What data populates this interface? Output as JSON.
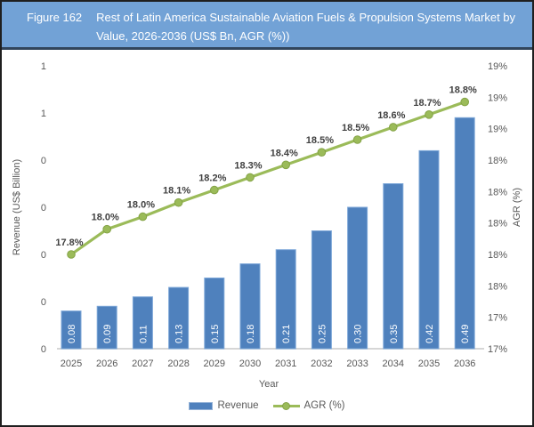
{
  "header": {
    "figure_label": "Figure 162",
    "title_line1": "Rest of Latin America Sustainable Aviation Fuels & Propulsion Systems Market by",
    "title_line2": "Value, 2026-2036 (US$ Bn, AGR (%))"
  },
  "colors": {
    "header_bg": "#72A2D6",
    "header_rule": "#31455C",
    "bar_fill": "#4F81BD",
    "bar_edge": "#7DA7D8",
    "line_green": "#9BBB59",
    "marker_edge": "#84A346",
    "axis_text": "#595959",
    "point_label_text": "#404040",
    "bar_label_text": "#FFFFFF",
    "axis_line": "#C9C9C9"
  },
  "chart_data": {
    "type": "combo",
    "title": "Rest of Latin America Sustainable Aviation Fuels & Propulsion Systems Market by Value, 2026-2036 (US$ Bn, AGR (%))",
    "categories": [
      "2025",
      "2026",
      "2027",
      "2028",
      "2029",
      "2030",
      "2031",
      "2032",
      "2033",
      "2034",
      "2035",
      "2036"
    ],
    "series": [
      {
        "name": "Revenue",
        "type": "bar",
        "axis": "left",
        "values": [
          0.08,
          0.09,
          0.11,
          0.13,
          0.15,
          0.18,
          0.21,
          0.25,
          0.3,
          0.35,
          0.42,
          0.49
        ],
        "labels": [
          "0.08",
          "0.09",
          "0.11",
          "0.13",
          "0.15",
          "0.18",
          "0.21",
          "0.25",
          "0.30",
          "0.35",
          "0.42",
          "0.49"
        ]
      },
      {
        "name": "AGR (%)",
        "type": "line",
        "axis": "right",
        "values": [
          17.8,
          18.0,
          18.0,
          18.1,
          18.2,
          18.3,
          18.4,
          18.5,
          18.5,
          18.6,
          18.7,
          18.8
        ],
        "labels": [
          "17.8%",
          "18.0%",
          "18.0%",
          "18.1%",
          "18.2%",
          "18.3%",
          "18.4%",
          "18.5%",
          "18.5%",
          "18.6%",
          "18.7%",
          "18.8%"
        ],
        "plot_values": [
          17.8,
          17.96,
          18.04,
          18.13,
          18.21,
          18.29,
          18.37,
          18.45,
          18.53,
          18.61,
          18.69,
          18.77
        ]
      }
    ],
    "xlabel": "Year",
    "ylabel_left": "Revenue (US$ Billion)",
    "ylabel_right": "AGR (%)",
    "left_axis": {
      "min": 0,
      "max": 0.6,
      "tick_labels_bottom_to_top": [
        "0",
        "0",
        "0",
        "0",
        "0",
        "1",
        "1"
      ]
    },
    "right_axis": {
      "min": 17.2,
      "max": 19.0,
      "tick_labels_bottom_to_top": [
        "17%",
        "17%",
        "18%",
        "18%",
        "18%",
        "18%",
        "18%",
        "19%",
        "19%",
        "19%"
      ]
    },
    "grid": false,
    "legend_position": "bottom"
  }
}
